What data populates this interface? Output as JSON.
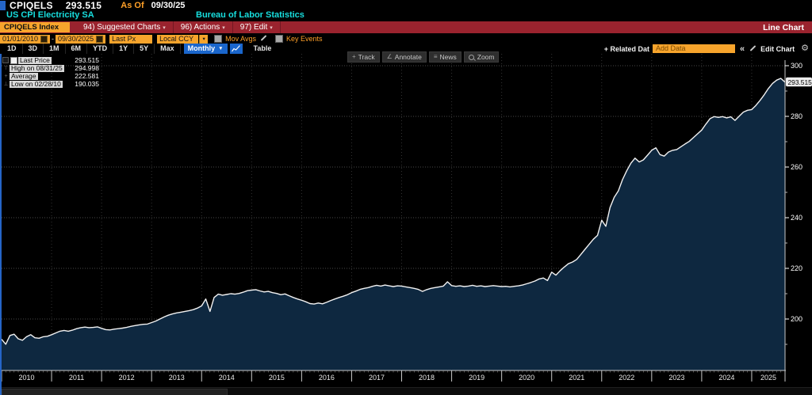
{
  "header": {
    "ticker": "CPIQELS",
    "last_value": "293.515",
    "as_of_label": "As Of",
    "as_of_date": "09/30/25",
    "security_name": "US CPI Electricity SA",
    "source": "Bureau of Labor Statistics",
    "security_field": "CPIQELS Index",
    "menu_suggested": "94) Suggested Charts",
    "menu_actions": "96) Actions",
    "menu_edit": "97) Edit",
    "menu_caret": "▾",
    "view_label": "Line Chart"
  },
  "controls": {
    "date_from": "01/01/2010",
    "date_dash": "-",
    "date_to": "09/30/2025",
    "field": "Last Px",
    "currency": "Local CCY",
    "currency_caret": "▾",
    "mov_avgs_label": "Mov Avgs",
    "key_events_label": "Key Events",
    "periods": [
      "1D",
      "3D",
      "1M",
      "6M",
      "YTD",
      "1Y",
      "5Y",
      "Max"
    ],
    "frequency": "Monthly",
    "frequency_caret": "▼",
    "table_label": "Table",
    "related_label": "+ Related Dat",
    "add_data_placeholder": "Add Data",
    "collapse_label": "«",
    "edit_chart_label": "Edit Chart",
    "gear_glyph": "⚙"
  },
  "chart_toolbar": {
    "track": "Track",
    "track_icon": "+",
    "annotate": "Annotate",
    "annotate_icon": "∠",
    "news": "News",
    "news_icon": "≡",
    "zoom": "Zoom"
  },
  "legend": {
    "rows": [
      {
        "icon": "swatch",
        "label": "Last Price",
        "value": "293.515"
      },
      {
        "icon": "⊤",
        "label": "High on 08/31/25",
        "value": "294.998"
      },
      {
        "icon": "+",
        "label": "Average",
        "value": "222.581"
      },
      {
        "icon": "⊥",
        "label": "Low on 02/28/10",
        "value": "190.035"
      }
    ]
  },
  "chart_data": {
    "type": "line",
    "title": "US CPI Electricity SA (CPIQELS Index)",
    "frequency": "Monthly",
    "x_axis": {
      "start": "2010-01",
      "end": "2025-09",
      "years": [
        2010,
        2011,
        2012,
        2013,
        2014,
        2015,
        2016,
        2017,
        2018,
        2019,
        2020,
        2021,
        2022,
        2023,
        2024,
        2025
      ]
    },
    "y_axis": {
      "ticks": [
        200,
        220,
        240,
        260,
        280,
        300
      ],
      "minor_step": 10,
      "ylim": [
        180,
        305
      ]
    },
    "grid": true,
    "legend_position": "top-left",
    "stats": {
      "last": 293.515,
      "last_date": "09/30/25",
      "high": 294.998,
      "high_date": "08/31/25",
      "average": 222.581,
      "low": 190.035,
      "low_date": "02/28/10"
    },
    "last_label": "293.515",
    "colors": {
      "line": "#f2f2f2",
      "area": "#0e2840",
      "grid": "#474747",
      "axis": "#c8c8c8"
    },
    "values": [
      192.0,
      190.035,
      193.5,
      194.0,
      192.2,
      191.6,
      193.0,
      193.8,
      192.6,
      192.4,
      193.0,
      193.2,
      193.8,
      194.5,
      195.2,
      195.5,
      195.2,
      195.6,
      196.2,
      196.6,
      196.8,
      196.6,
      196.7,
      196.9,
      196.3,
      195.8,
      195.7,
      196.0,
      196.2,
      196.4,
      196.7,
      197.1,
      197.4,
      197.7,
      197.9,
      198.0,
      198.6,
      199.2,
      200.0,
      200.8,
      201.5,
      202.0,
      202.4,
      202.7,
      203.0,
      203.3,
      203.7,
      204.3,
      205.2,
      207.9,
      203.0,
      208.5,
      209.8,
      209.4,
      209.7,
      210.0,
      209.8,
      210.1,
      210.6,
      211.2,
      211.4,
      211.6,
      211.1,
      210.7,
      210.9,
      210.4,
      210.1,
      209.6,
      209.9,
      209.2,
      208.5,
      207.9,
      207.4,
      206.8,
      206.1,
      205.9,
      206.3,
      206.0,
      206.6,
      207.3,
      207.9,
      208.5,
      209.0,
      209.6,
      210.4,
      211.0,
      211.7,
      212.1,
      212.4,
      212.9,
      213.3,
      213.0,
      213.4,
      213.1,
      212.8,
      213.1,
      213.0,
      212.7,
      212.4,
      212.1,
      211.7,
      210.9,
      211.6,
      212.1,
      212.4,
      212.7,
      213.0,
      214.7,
      213.2,
      212.9,
      213.1,
      212.8,
      213.0,
      213.3,
      212.9,
      213.1,
      212.8,
      213.0,
      213.2,
      213.0,
      212.8,
      212.9,
      212.7,
      212.9,
      213.1,
      213.4,
      213.9,
      214.4,
      215.0,
      215.8,
      216.2,
      215.2,
      218.5,
      217.3,
      219.0,
      220.5,
      221.8,
      222.5,
      223.5,
      225.5,
      227.5,
      229.5,
      231.5,
      233.0,
      239.0,
      236.6,
      244.0,
      248.0,
      250.6,
      255.0,
      258.5,
      261.5,
      263.5,
      262.0,
      262.8,
      264.7,
      266.6,
      267.6,
      264.9,
      264.3,
      265.9,
      266.6,
      266.9,
      268.0,
      269.1,
      270.1,
      271.6,
      273.1,
      274.6,
      276.9,
      279.1,
      279.9,
      279.6,
      279.9,
      279.4,
      279.8,
      278.4,
      280.1,
      281.7,
      282.4,
      282.7,
      284.3,
      286.3,
      288.5,
      291.0,
      293.0,
      294.3,
      294.998,
      293.515
    ]
  }
}
